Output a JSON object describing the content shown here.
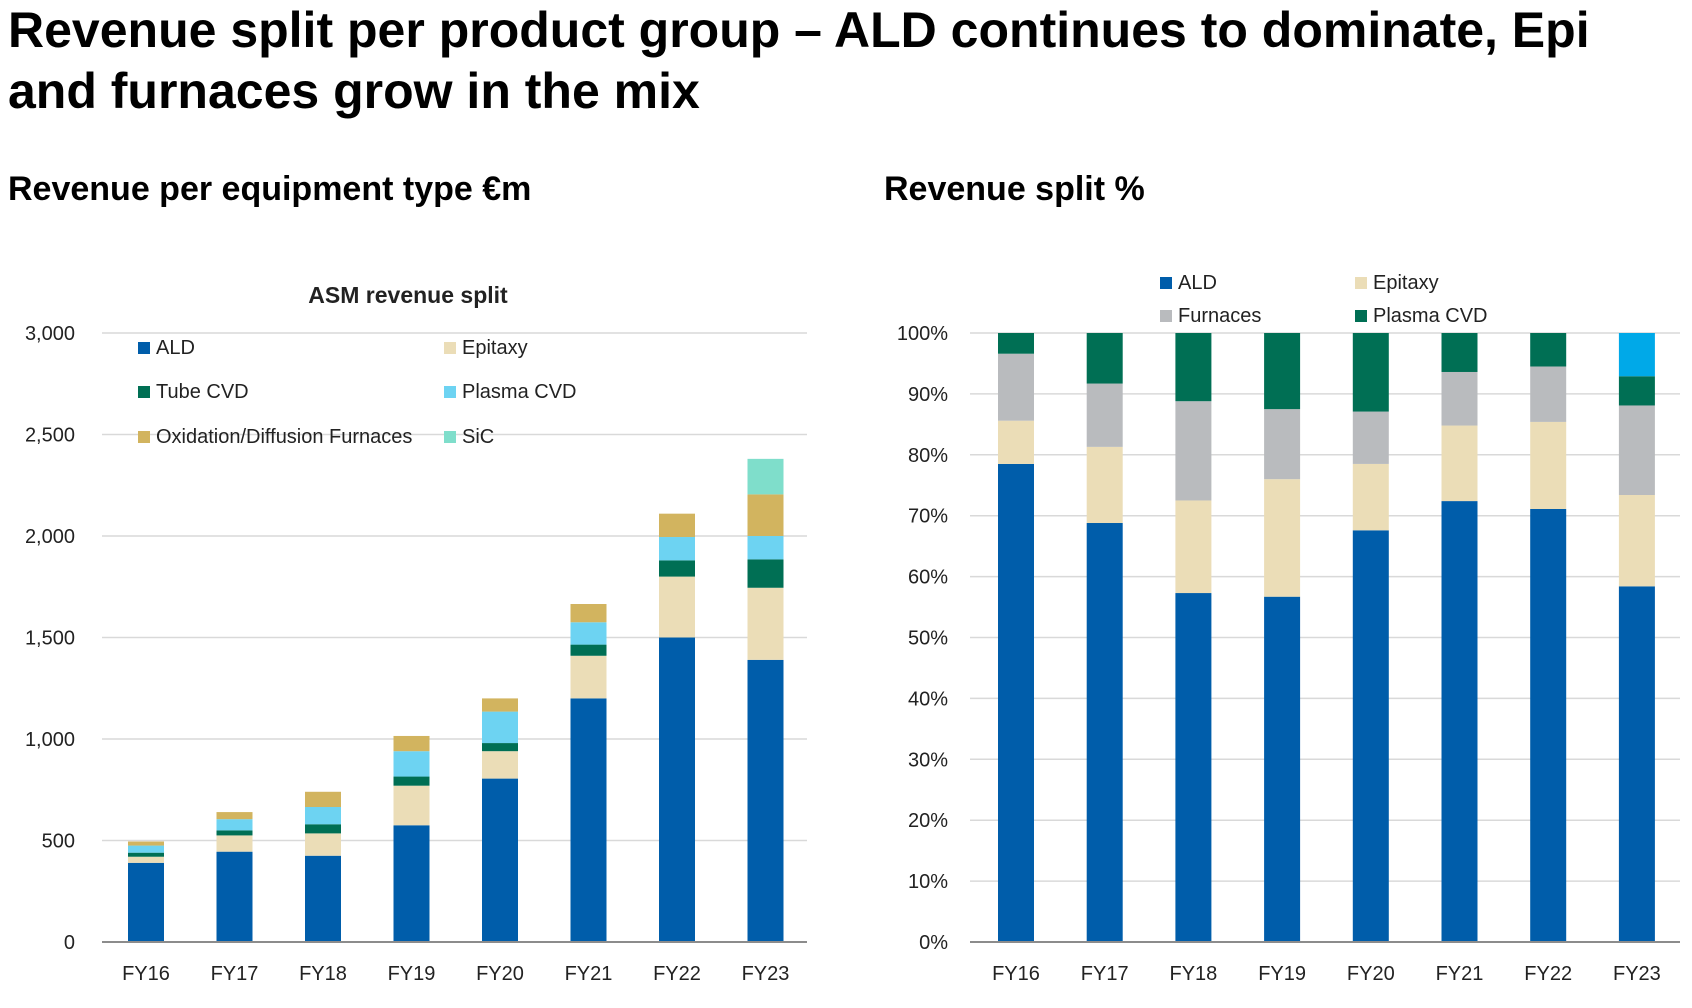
{
  "page": {
    "title_line1": "Revenue split per product group – ALD continues to dominate, Epi",
    "title_line2": "and furnaces grow in the mix",
    "left_subtitle": "Revenue per equipment type €m",
    "right_subtitle": "Revenue split %"
  },
  "chart_data": [
    {
      "type": "bar",
      "stacked": true,
      "title": "ASM revenue split",
      "categories": [
        "FY16",
        "FY17",
        "FY18",
        "FY19",
        "FY20",
        "FY21",
        "FY22",
        "FY23"
      ],
      "ylim": [
        0,
        3000
      ],
      "yticks": [
        0,
        500,
        1000,
        1500,
        2000,
        2500,
        3000
      ],
      "ytick_labels": [
        "0",
        "500",
        "1,000",
        "1,500",
        "2,000",
        "2,500",
        "3,000"
      ],
      "grid": true,
      "legend_position": "top-left",
      "series": [
        {
          "name": "ALD",
          "color": "#005DAA",
          "values": [
            390,
            445,
            425,
            575,
            805,
            1200,
            1500,
            1390
          ]
        },
        {
          "name": "Epitaxy",
          "color": "#EBDDB7",
          "values": [
            30,
            80,
            110,
            195,
            135,
            210,
            300,
            355
          ]
        },
        {
          "name": "Tube CVD",
          "color": "#006F54",
          "values": [
            20,
            25,
            45,
            45,
            40,
            55,
            80,
            140
          ]
        },
        {
          "name": "Plasma CVD",
          "color": "#6DD3F2",
          "values": [
            35,
            55,
            85,
            125,
            155,
            110,
            115,
            115
          ]
        },
        {
          "name": "Oxidation/Diffusion Furnaces",
          "color": "#D2B45F",
          "values": [
            20,
            35,
            75,
            75,
            65,
            90,
            115,
            205
          ]
        },
        {
          "name": "SiC",
          "color": "#7FDECB",
          "values": [
            0,
            0,
            0,
            0,
            0,
            0,
            0,
            175
          ]
        }
      ]
    },
    {
      "type": "bar",
      "stacked": true,
      "title": "",
      "categories": [
        "FY16",
        "FY17",
        "FY18",
        "FY19",
        "FY20",
        "FY21",
        "FY22",
        "FY23"
      ],
      "ylim": [
        0,
        100
      ],
      "yticks": [
        0,
        10,
        20,
        30,
        40,
        50,
        60,
        70,
        80,
        90,
        100
      ],
      "ytick_labels": [
        "0%",
        "10%",
        "20%",
        "30%",
        "40%",
        "50%",
        "60%",
        "70%",
        "80%",
        "90%",
        "100%"
      ],
      "grid": true,
      "legend_position": "top",
      "series": [
        {
          "name": "ALD",
          "color": "#005DAA",
          "values": [
            78.5,
            68.8,
            57.3,
            56.7,
            67.6,
            72.4,
            71.1,
            58.4
          ]
        },
        {
          "name": "Epitaxy",
          "color": "#EBDDB7",
          "values": [
            7.1,
            12.5,
            15.2,
            19.3,
            10.9,
            12.4,
            14.3,
            15.0
          ]
        },
        {
          "name": "Furnaces",
          "color": "#B9BBBE",
          "values": [
            11.0,
            10.4,
            16.3,
            11.5,
            8.6,
            8.8,
            9.1,
            14.7
          ]
        },
        {
          "name": "Plasma CVD",
          "color": "#006F54",
          "values": [
            3.4,
            8.3,
            11.2,
            12.5,
            12.9,
            6.4,
            5.5,
            4.8
          ]
        },
        {
          "name": "",
          "color": "#00A9E8",
          "values": [
            0,
            0,
            0,
            0,
            0,
            0,
            0,
            7.1
          ]
        }
      ]
    }
  ]
}
